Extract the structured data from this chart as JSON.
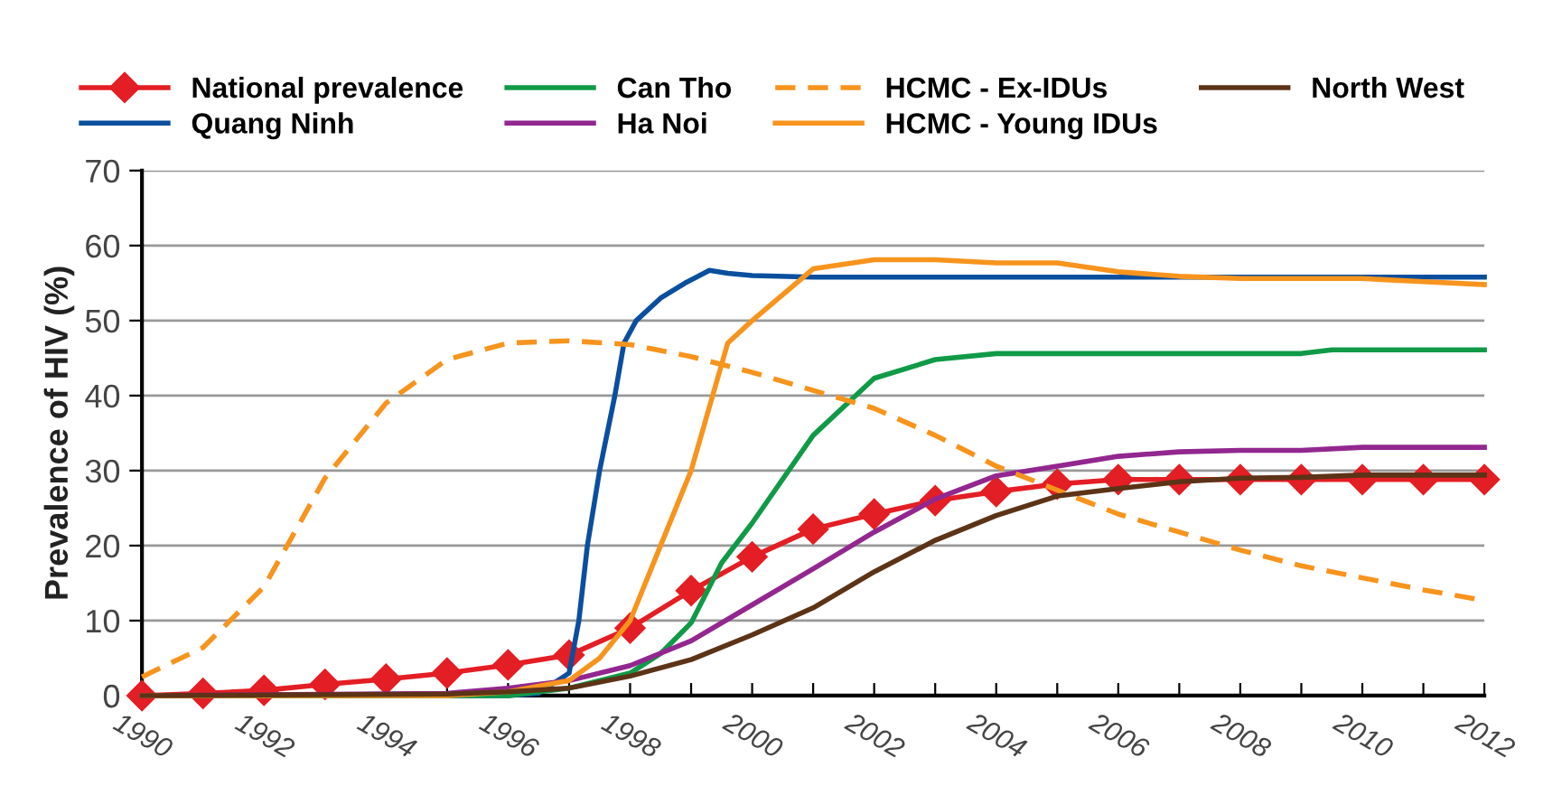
{
  "chart_data": {
    "type": "line",
    "ylabel": "Prevalence of HIV (%)",
    "xlim": [
      1990,
      2012
    ],
    "ylim": [
      0,
      70
    ],
    "xticks": [
      1990,
      {
        "value": 1991,
        "label": null
      },
      1992,
      {
        "value": 1993,
        "label": null
      },
      1994,
      {
        "value": 1995,
        "label": null
      },
      1996,
      {
        "value": 1997,
        "label": null
      },
      1998,
      {
        "value": 1999,
        "label": null
      },
      2000,
      {
        "value": 2001,
        "label": null
      },
      2002,
      {
        "value": 2003,
        "label": null
      },
      2004,
      {
        "value": 2005,
        "label": null
      },
      2006,
      {
        "value": 2007,
        "label": null
      },
      2008,
      {
        "value": 2009,
        "label": null
      },
      2010,
      {
        "value": 2011,
        "label": null
      },
      2012
    ],
    "yticks": [
      0,
      10,
      20,
      30,
      40,
      50,
      60,
      70
    ],
    "grid": "y",
    "legend": "top",
    "series": [
      {
        "name": "National prevalence",
        "color": "#e31e24",
        "marker": "diamond",
        "x": [
          1990,
          1991,
          1992,
          1993,
          1994,
          1995,
          1996,
          1997,
          1998,
          1999,
          2000,
          2001,
          2002,
          2003,
          2004,
          2005,
          2006,
          2007,
          2008,
          2009,
          2010,
          2011,
          2012
        ],
        "values": [
          0,
          0.3,
          0.7,
          1.5,
          2.2,
          3,
          4.1,
          5.4,
          9,
          14,
          18.5,
          22.2,
          24.2,
          26,
          27.2,
          28.2,
          28.8,
          28.8,
          28.8,
          28.8,
          28.8,
          28.8,
          28.8
        ]
      },
      {
        "name": "Quang Ninh",
        "color": "#0a4f9e",
        "x": [
          1990,
          1996,
          1996.5,
          1997,
          1997.16,
          1997.3,
          1997.5,
          1997.75,
          1997.9,
          1998.1,
          1998.5,
          1998.9,
          1999.3,
          1999.6,
          2000,
          2001,
          2012
        ],
        "values": [
          0,
          0,
          0.3,
          3,
          10,
          20,
          30,
          40,
          47,
          50,
          53,
          55,
          56.7,
          56.3,
          56,
          55.8,
          55.8
        ]
      },
      {
        "name": "Can Tho",
        "color": "#109a48",
        "x": [
          1990,
          1996,
          1997,
          1998,
          1998.5,
          1999,
          1999.5,
          2000,
          2001,
          2002,
          2003,
          2004,
          2005,
          2006,
          2007,
          2008,
          2009,
          2009.5,
          2010,
          2011,
          2012
        ],
        "values": [
          0,
          0,
          1,
          3,
          5.6,
          9.7,
          17.7,
          23,
          34.7,
          42.3,
          44.8,
          45.6,
          45.6,
          45.6,
          45.6,
          45.6,
          45.6,
          46.1,
          46.1,
          46.1,
          46.1
        ]
      },
      {
        "name": "Ha Noi",
        "color": "#92278f",
        "x": [
          1990,
          1995,
          1996,
          1997,
          1998,
          1999,
          2000,
          2001,
          2002,
          2003,
          2004,
          2005,
          2006,
          2007,
          2008,
          2009,
          2010,
          2011,
          2012
        ],
        "values": [
          0,
          0.3,
          1,
          2,
          4,
          7.3,
          12.1,
          16.9,
          21.8,
          26.2,
          29.3,
          30.6,
          31.9,
          32.5,
          32.7,
          32.7,
          33.1,
          33.1,
          33.1
        ]
      },
      {
        "name": "HCMC - Ex-IDUs",
        "color": "#f7941d",
        "line_style": "dashed",
        "x": [
          1990,
          1991,
          1992,
          1993,
          1994,
          1995,
          1996,
          1997,
          1998,
          1999,
          2000,
          2001,
          2002,
          2003,
          2004,
          2005,
          2006,
          2007,
          2008,
          2009,
          2010,
          2011,
          2012
        ],
        "values": [
          2.5,
          6.4,
          14.5,
          29,
          39,
          44.8,
          47,
          47.3,
          46.8,
          45.2,
          43.1,
          40.7,
          38.3,
          34.7,
          30.6,
          27.4,
          24.2,
          21.8,
          19.4,
          17.3,
          15.7,
          14.1,
          12.7
        ]
      },
      {
        "name": "HCMC - Young IDUs",
        "color": "#f7941d",
        "x": [
          1990,
          1995,
          1996,
          1997,
          1997.5,
          1998,
          1998.5,
          1999,
          1999.6,
          2000,
          2001,
          2002,
          2003,
          2004,
          2005,
          2006,
          2007,
          2008,
          2009,
          2010,
          2011,
          2012
        ],
        "values": [
          0,
          0,
          0.5,
          2,
          5,
          10,
          20,
          30,
          47,
          50,
          56.9,
          58.1,
          58.1,
          57.7,
          57.7,
          56.5,
          55.9,
          55.6,
          55.6,
          55.6,
          55.2,
          54.8
        ]
      },
      {
        "name": "North West",
        "color": "#5c3317",
        "x": [
          1990,
          1995,
          1996,
          1997,
          1998,
          1999,
          2000,
          2001,
          2002,
          2003,
          2004,
          2005,
          2006,
          2007,
          2008,
          2009,
          2010,
          2011,
          2012
        ],
        "values": [
          0,
          0.2,
          0.5,
          1,
          2.6,
          4.8,
          8.1,
          11.7,
          16.5,
          20.7,
          24,
          26.6,
          27.6,
          28.5,
          29,
          29.1,
          29.4,
          29.4,
          29.4
        ]
      }
    ]
  }
}
